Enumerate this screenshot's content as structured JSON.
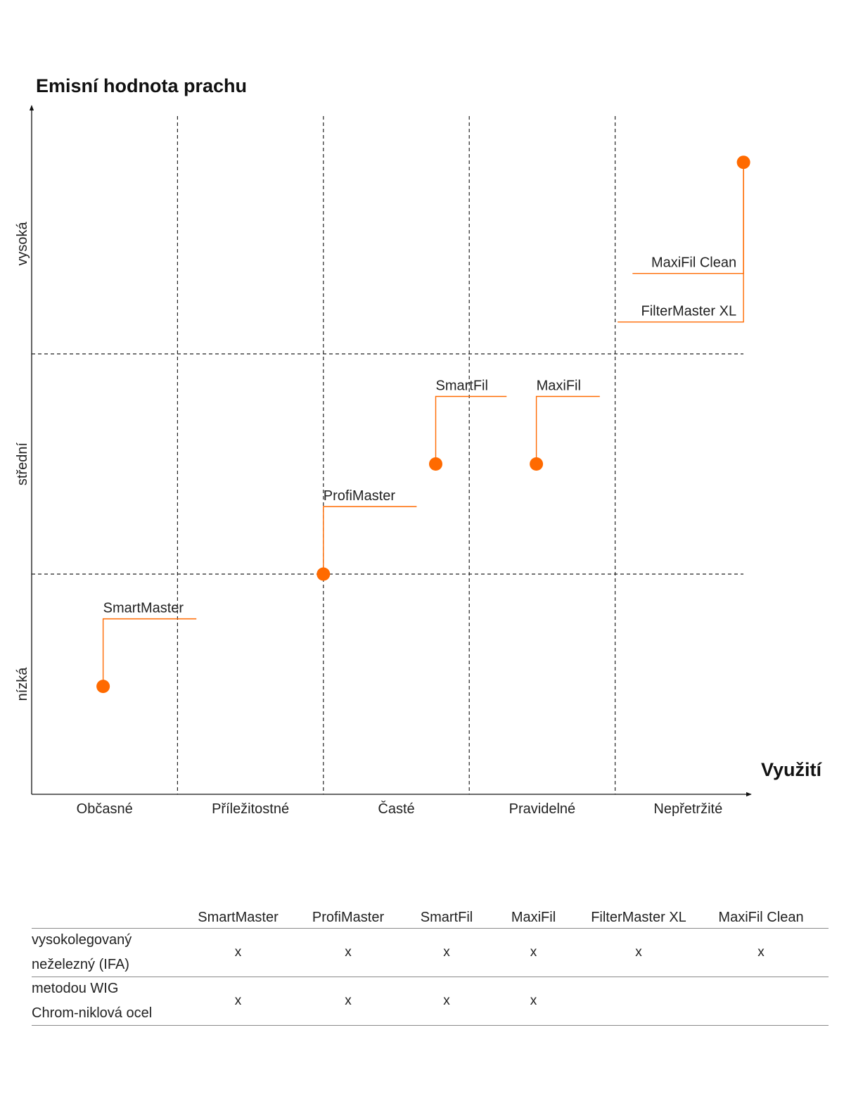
{
  "chart_data": {
    "type": "scatter",
    "title": "Emisní hodnota prachu",
    "xlabel": "Využití",
    "ylabel": "Emisní hodnota prachu",
    "x_categories": [
      "Občasné",
      "Příležitostné",
      "Časté",
      "Pravidelné",
      "Nepřetržité"
    ],
    "y_bands": [
      "nízká",
      "střední",
      "vysoká"
    ],
    "xlim": [
      0,
      5
    ],
    "ylim": [
      0,
      3
    ],
    "grid": true,
    "accent_color": "#ff6a00",
    "points": [
      {
        "labels": [
          "SmartMaster"
        ],
        "x": 0.49,
        "y": 0.49
      },
      {
        "labels": [
          "ProfiMaster"
        ],
        "x": 2.0,
        "y": 1.0
      },
      {
        "labels": [
          "SmartFil"
        ],
        "x": 2.77,
        "y": 1.5
      },
      {
        "labels": [
          "MaxiFil"
        ],
        "x": 3.46,
        "y": 1.5
      },
      {
        "labels": [
          "MaxiFil Clean",
          "FilterMaster XL"
        ],
        "x": 4.88,
        "y": 2.87
      }
    ]
  },
  "matrix": {
    "columns": [
      "SmartMaster",
      "ProfiMaster",
      "SmartFil",
      "MaxiFil",
      "FilterMaster XL",
      "MaxiFil Clean"
    ],
    "rows": [
      {
        "label_lines": [
          "vysokolegovaný",
          "neželezný (IFA)"
        ],
        "marks": [
          "x",
          "x",
          "x",
          "x",
          "x",
          "x"
        ]
      },
      {
        "label_lines": [
          "metodou WIG",
          "Chrom-niklová ocel"
        ],
        "marks": [
          "x",
          "x",
          "x",
          "x",
          "",
          ""
        ]
      }
    ]
  }
}
